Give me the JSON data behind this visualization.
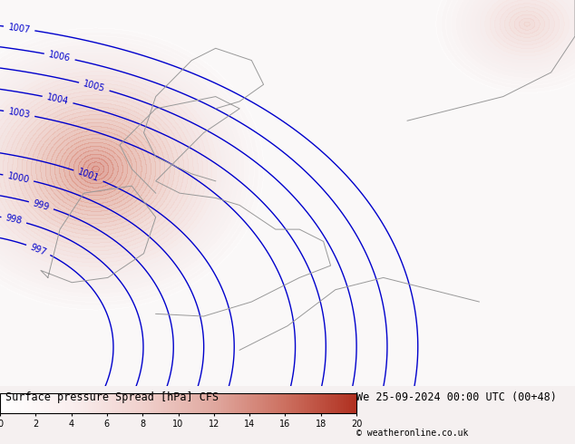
{
  "title_left": "Surface pressure Spread [hPa] CFS",
  "title_right": "We 25-09-2024 00:00 UTC (00+48)",
  "copyright": "© weatheronline.co.uk",
  "colorbar_min": 0,
  "colorbar_max": 20,
  "colorbar_ticks": [
    0,
    2,
    4,
    6,
    8,
    10,
    12,
    14,
    16,
    18,
    20
  ],
  "colorbar_colors": [
    "#ffffff",
    "#f9eeee",
    "#f0d0cc",
    "#e0a89f",
    "#cc7060",
    "#b03020"
  ],
  "contour_color": "#0000cc",
  "contour_linewidth": 1.0,
  "background_color": "#f5f0f0",
  "map_line_color": "#999999",
  "label_fontsize": 7,
  "title_fontsize": 8.5,
  "pressure_levels": [
    997,
    998,
    999,
    1000,
    1001,
    1003,
    1004,
    1005,
    1006,
    1007
  ],
  "fig_width": 6.34,
  "fig_height": 4.9
}
